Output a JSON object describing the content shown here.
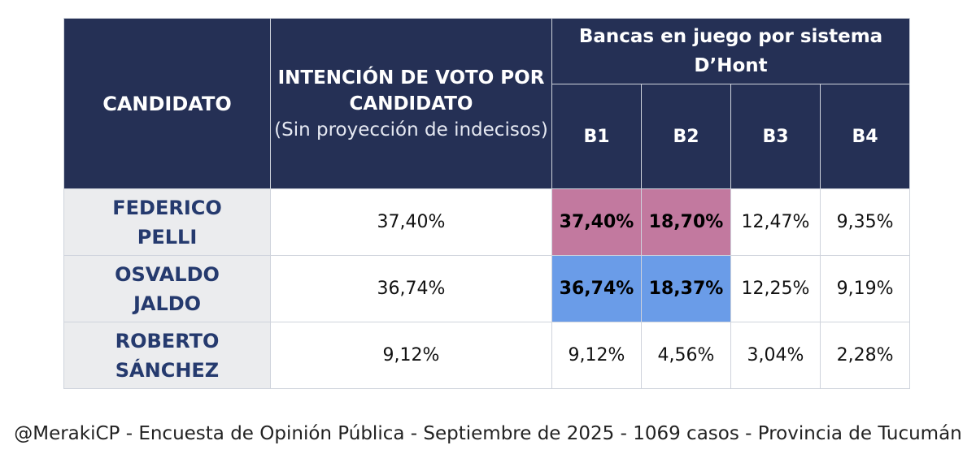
{
  "chart_data": {
    "type": "table",
    "headers": {
      "candidate": "CANDIDATO",
      "intention_bold": "INTENCIÓN DE VOTO POR CANDIDATO",
      "intention_note": "(Sin proyección de indecisos)",
      "seats_group": "Bancas en juego por sistema D’Hont",
      "seats": [
        "B1",
        "B2",
        "B3",
        "B4"
      ]
    },
    "rows": [
      {
        "name": [
          "FEDERICO",
          "PELLI"
        ],
        "intention": "37,40%",
        "seats": [
          "37,40%",
          "18,70%",
          "12,47%",
          "9,35%"
        ],
        "highlight": "pink"
      },
      {
        "name": [
          "OSVALDO",
          "JALDO"
        ],
        "intention": "36,74%",
        "seats": [
          "36,74%",
          "18,37%",
          "12,25%",
          "9,19%"
        ],
        "highlight": "blue"
      },
      {
        "name": [
          "ROBERTO",
          "SÁNCHEZ"
        ],
        "intention": "9,12%",
        "seats": [
          "9,12%",
          "4,56%",
          "3,04%",
          "2,28%"
        ],
        "highlight": ""
      }
    ],
    "colors": {
      "header_bg": "#253055",
      "highlight_pink": "#c2799f",
      "highlight_blue": "#6a9ce8",
      "candidate_text": "#253a6e"
    }
  },
  "footer": "@MerakiCP - Encuesta de Opinión Pública - Septiembre de 2025 - 1069 casos - Provincia de Tucumán"
}
